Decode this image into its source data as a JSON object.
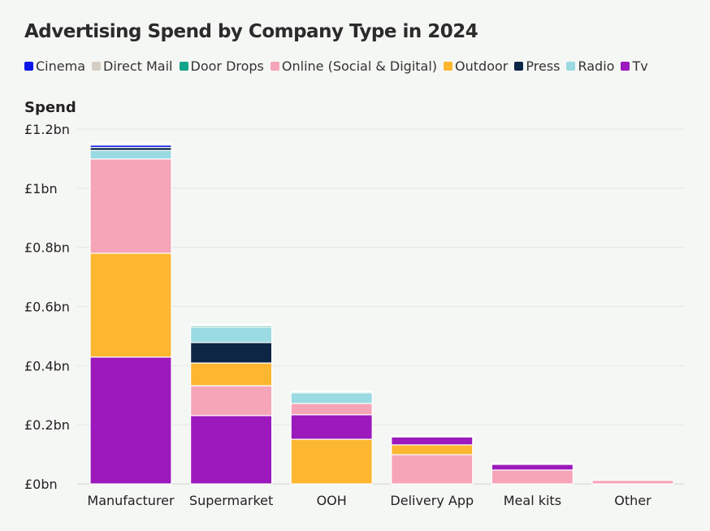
{
  "chart_data": {
    "type": "bar",
    "stacked": true,
    "title": "Advertising Spend by Company Type in 2024",
    "ylabel": "Spend",
    "xlabel": "",
    "ylim": [
      0,
      1.2
    ],
    "yticks": [
      0,
      0.2,
      0.4,
      0.6,
      0.8,
      1.0,
      1.2
    ],
    "ytick_labels": [
      "£0bn",
      "£0.2bn",
      "£0.4bn",
      "£0.6bn",
      "£0.8bn",
      "£1bn",
      "£1.2bn"
    ],
    "grid": true,
    "legend_position": "top-left",
    "stack_order": "largest segment at bottom within each bar",
    "categories": [
      "Manufacturer",
      "Supermarket",
      "OOH",
      "Delivery App",
      "Meal kits",
      "Other"
    ],
    "series": [
      {
        "name": "Cinema",
        "color": "#0a16e8",
        "values": [
          0.008,
          0.003,
          0,
          0,
          0,
          0
        ]
      },
      {
        "name": "Direct Mail",
        "color": "#d6cdc3",
        "values": [
          0.005,
          0.003,
          0.002,
          0.002,
          0.004,
          0
        ]
      },
      {
        "name": "Door Drops",
        "color": "#12a38a",
        "values": [
          0.002,
          0.005,
          0.004,
          0,
          0,
          0
        ]
      },
      {
        "name": "Online (Social & Digital)",
        "color": "#f6a5b8",
        "values": [
          0.319,
          0.101,
          0.038,
          0.099,
          0.047,
          0.012
        ]
      },
      {
        "name": "Outdoor",
        "color": "#fdb630",
        "values": [
          0.351,
          0.077,
          0.151,
          0.033,
          0,
          0
        ]
      },
      {
        "name": "Press",
        "color": "#0d2645",
        "values": [
          0.01,
          0.069,
          0,
          0,
          0,
          0
        ]
      },
      {
        "name": "Radio",
        "color": "#9adae2",
        "values": [
          0.029,
          0.052,
          0.036,
          0.003,
          0,
          0
        ]
      },
      {
        "name": "Tv",
        "color": "#9b19bd",
        "values": [
          0.429,
          0.231,
          0.083,
          0.027,
          0.019,
          0
        ]
      }
    ]
  }
}
